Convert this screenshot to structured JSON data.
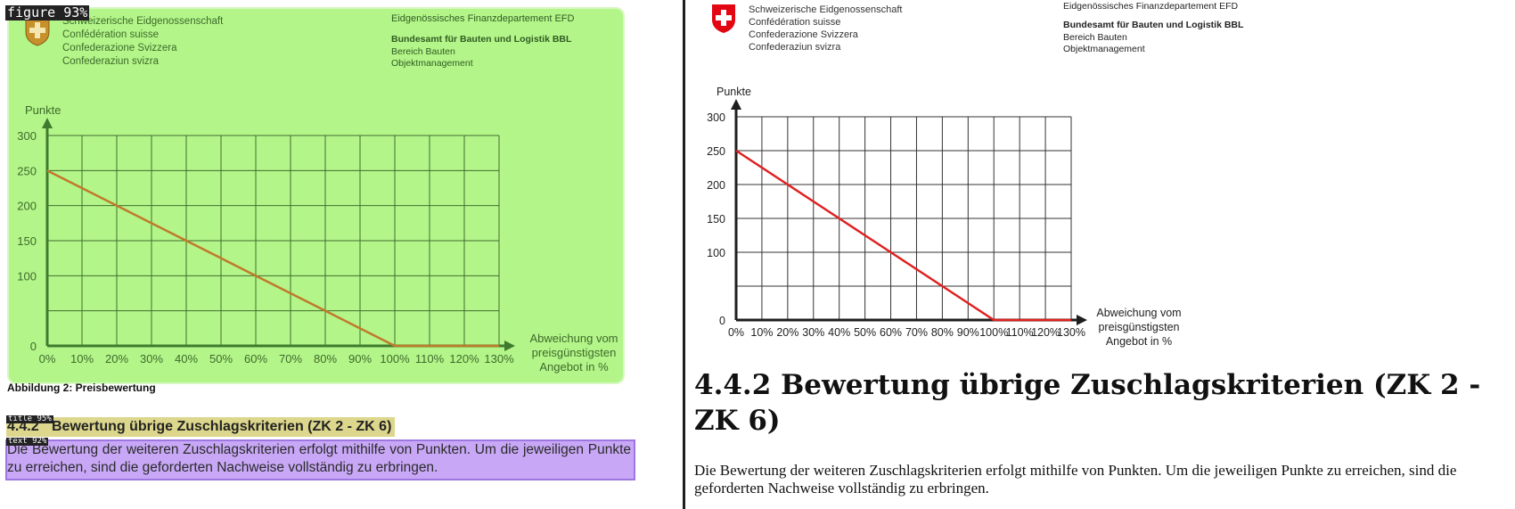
{
  "header": {
    "confederation_lines": [
      "Schweizerische Eidgenossenschaft",
      "Confédération suisse",
      "Confederazione Svizzera",
      "Confederaziun svizra"
    ],
    "department": "Eidgenössisches Finanzdepartement EFD",
    "office": "Bundesamt für Bauten und Logistik BBL",
    "division": "Bereich Bauten",
    "unit": "Objektmanagement"
  },
  "detections": {
    "figure_label": "figure 93%",
    "title_label": "title 95%",
    "text_label": "text 92%"
  },
  "figure_caption": "Abbildung 2: Preisbewertung",
  "section": {
    "number": "4.4.2",
    "title": "Bewertung übrige Zuschlagskriterien (ZK 2 - ZK 6)",
    "full_title": "4.4.2 Bewertung übrige Zuschlagskriterien (ZK 2 - ZK 6)",
    "paragraph": "Die Bewertung der weiteren Zuschlagskriterien erfolgt mithilfe von Punkten. Um die jeweiligen Punkte zu erreichen, sind die geforderten Nachweise vollständig zu erbringen."
  },
  "chart_data": {
    "type": "line",
    "ylabel": "Punkte",
    "xlabel_lines": [
      "Abweichung vom",
      "preisgünstigsten",
      "Angebot in %"
    ],
    "x": [
      0,
      10,
      20,
      30,
      40,
      50,
      60,
      70,
      80,
      90,
      100,
      110,
      120,
      130
    ],
    "x_tick_labels": [
      "0%",
      "10%",
      "20%",
      "30%",
      "40%",
      "50%",
      "60%",
      "70%",
      "80%",
      "90%",
      "100%",
      "110%",
      "120%",
      "130%"
    ],
    "y_ticks": [
      0,
      100,
      150,
      200,
      250,
      300
    ],
    "xlim": [
      0,
      130
    ],
    "ylim": [
      0,
      300
    ],
    "grid": true,
    "series": [
      {
        "values": [
          250,
          225,
          200,
          175,
          150,
          125,
          100,
          75,
          50,
          25,
          0,
          0,
          0,
          0
        ]
      }
    ],
    "colors": {
      "left_line": "#c07a2a",
      "right_line": "#e02020"
    }
  },
  "colors": {
    "figure_highlight": "#b4f58a",
    "title_highlight": "#dcd78c",
    "text_highlight": "#c8a8f6",
    "swiss_red": "#e30613"
  }
}
